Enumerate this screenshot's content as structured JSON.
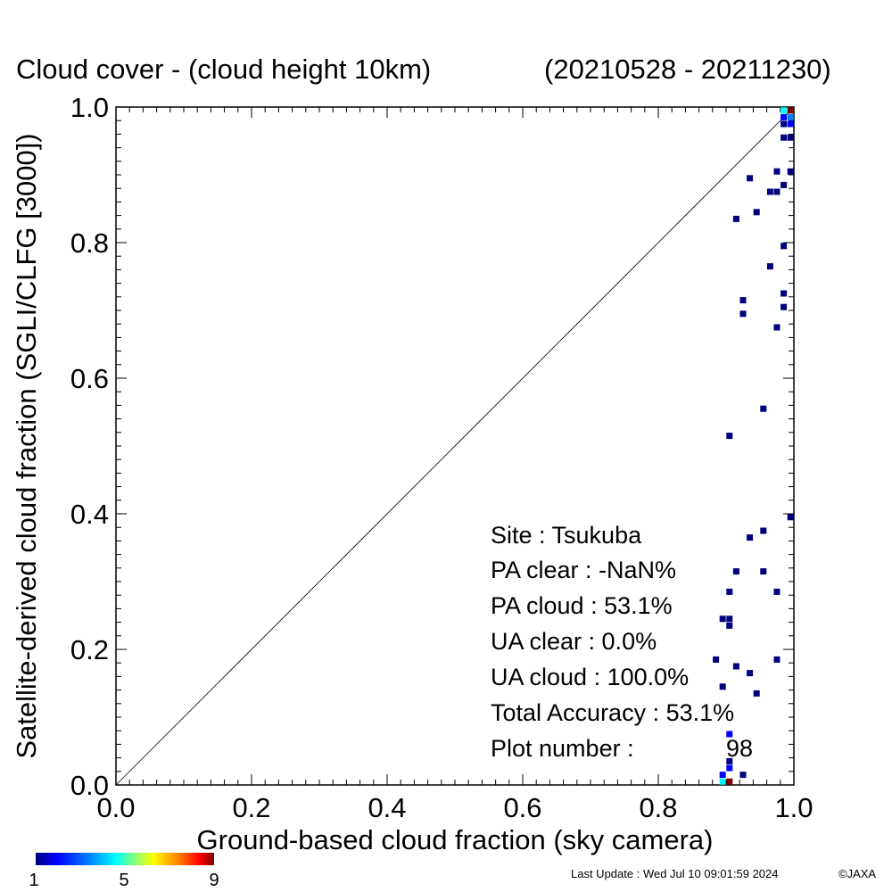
{
  "chart_data": {
    "type": "scatter",
    "title": "Cloud cover - (cloud height 10km)",
    "period": "(20210528 - 20211230)",
    "xlabel": "Ground-based cloud fraction (sky camera)",
    "ylabel": "Satellite-derived cloud fraction (SGLI/CLFG [3000])",
    "xlim": [
      0.0,
      1.0
    ],
    "ylim": [
      0.0,
      1.0
    ],
    "x_tick_labels": [
      "0.0",
      "0.2",
      "0.4",
      "0.6",
      "0.8",
      "1.0"
    ],
    "y_tick_labels": [
      "0.0",
      "0.2",
      "0.4",
      "0.6",
      "0.8",
      "1.0"
    ],
    "reference_line": "y = x",
    "grid": false,
    "color_scale": {
      "min_label": "1",
      "mid_label": "5",
      "max_label": "9",
      "colors": [
        "#00007f",
        "#0000ff",
        "#007fff",
        "#00ffff",
        "#7fff7f",
        "#ffff00",
        "#ff7f00",
        "#ff0000",
        "#7f0000"
      ]
    },
    "points": [
      {
        "x": 0.995,
        "y": 0.995,
        "count": 9
      },
      {
        "x": 0.985,
        "y": 0.995,
        "count": 4
      },
      {
        "x": 0.995,
        "y": 0.985,
        "count": 3
      },
      {
        "x": 0.985,
        "y": 0.985,
        "count": 2
      },
      {
        "x": 0.995,
        "y": 0.975,
        "count": 2
      },
      {
        "x": 0.985,
        "y": 0.975,
        "count": 1
      },
      {
        "x": 0.985,
        "y": 0.955,
        "count": 1
      },
      {
        "x": 0.995,
        "y": 0.955,
        "count": 1
      },
      {
        "x": 0.995,
        "y": 0.905,
        "count": 1
      },
      {
        "x": 0.975,
        "y": 0.905,
        "count": 1
      },
      {
        "x": 0.935,
        "y": 0.895,
        "count": 1
      },
      {
        "x": 0.985,
        "y": 0.885,
        "count": 1
      },
      {
        "x": 0.965,
        "y": 0.875,
        "count": 1
      },
      {
        "x": 0.975,
        "y": 0.875,
        "count": 1
      },
      {
        "x": 0.945,
        "y": 0.845,
        "count": 1
      },
      {
        "x": 0.915,
        "y": 0.835,
        "count": 1
      },
      {
        "x": 0.985,
        "y": 0.795,
        "count": 1
      },
      {
        "x": 0.965,
        "y": 0.765,
        "count": 1
      },
      {
        "x": 0.985,
        "y": 0.725,
        "count": 1
      },
      {
        "x": 0.925,
        "y": 0.715,
        "count": 1
      },
      {
        "x": 0.985,
        "y": 0.705,
        "count": 1
      },
      {
        "x": 0.925,
        "y": 0.695,
        "count": 1
      },
      {
        "x": 0.975,
        "y": 0.675,
        "count": 1
      },
      {
        "x": 0.955,
        "y": 0.555,
        "count": 1
      },
      {
        "x": 0.905,
        "y": 0.515,
        "count": 1
      },
      {
        "x": 0.995,
        "y": 0.395,
        "count": 1
      },
      {
        "x": 0.955,
        "y": 0.375,
        "count": 1
      },
      {
        "x": 0.935,
        "y": 0.365,
        "count": 1
      },
      {
        "x": 0.915,
        "y": 0.315,
        "count": 1
      },
      {
        "x": 0.955,
        "y": 0.315,
        "count": 1
      },
      {
        "x": 0.905,
        "y": 0.285,
        "count": 1
      },
      {
        "x": 0.975,
        "y": 0.285,
        "count": 1
      },
      {
        "x": 0.895,
        "y": 0.245,
        "count": 1
      },
      {
        "x": 0.905,
        "y": 0.245,
        "count": 1
      },
      {
        "x": 0.905,
        "y": 0.235,
        "count": 1
      },
      {
        "x": 0.885,
        "y": 0.185,
        "count": 1
      },
      {
        "x": 0.975,
        "y": 0.185,
        "count": 1
      },
      {
        "x": 0.915,
        "y": 0.175,
        "count": 1
      },
      {
        "x": 0.935,
        "y": 0.165,
        "count": 1
      },
      {
        "x": 0.895,
        "y": 0.145,
        "count": 1
      },
      {
        "x": 0.945,
        "y": 0.135,
        "count": 1
      },
      {
        "x": 0.905,
        "y": 0.075,
        "count": 2
      },
      {
        "x": 0.905,
        "y": 0.035,
        "count": 1
      },
      {
        "x": 0.905,
        "y": 0.025,
        "count": 2
      },
      {
        "x": 0.895,
        "y": 0.015,
        "count": 2
      },
      {
        "x": 0.925,
        "y": 0.015,
        "count": 1
      },
      {
        "x": 0.895,
        "y": 0.005,
        "count": 4
      },
      {
        "x": 0.905,
        "y": 0.005,
        "count": 9
      }
    ]
  },
  "stats": {
    "site": "Site : Tsukuba",
    "pa_clear": "PA clear :  -NaN%",
    "pa_cloud": "PA cloud :  53.1%",
    "ua_clear": "UA clear :   0.0%",
    "ua_cloud": "UA cloud : 100.0%",
    "total_accuracy": "Total Accuracy :  53.1%",
    "plot_number_label": "Plot number :",
    "plot_number_value": "98"
  },
  "footer": {
    "last_update": "Last Update : Wed Jul 10 09:01:59 2024",
    "copyright": "©JAXA"
  }
}
